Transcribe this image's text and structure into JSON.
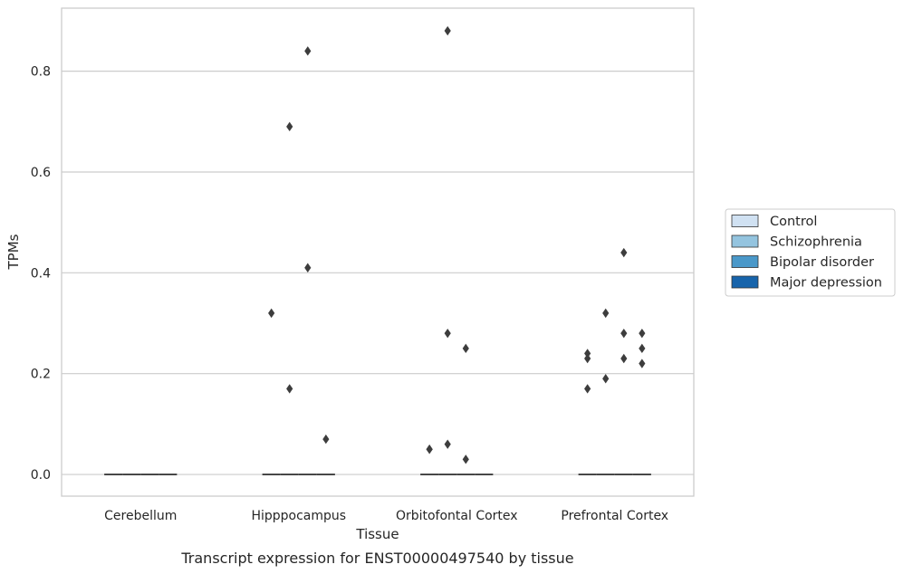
{
  "chart_data": {
    "type": "boxplot",
    "title": "",
    "caption": "Transcript expression for ENST00000497540 by tissue",
    "xlabel": "Tissue",
    "ylabel": "TPMs",
    "ylim": [
      -0.043,
      0.925
    ],
    "yticks": [
      0.0,
      0.2,
      0.4,
      0.6,
      0.8
    ],
    "ytick_labels": [
      "0.0",
      "0.2",
      "0.4",
      "0.6",
      "0.8"
    ],
    "grid": "horizontal",
    "categories": [
      "Cerebellum",
      "Hipppocampus",
      "Orbitofontal Cortex",
      "Prefrontal Cortex"
    ],
    "legend": {
      "position": "right",
      "entries": [
        {
          "label": "Control",
          "color": "#d0e1f2"
        },
        {
          "label": "Schizophrenia",
          "color": "#94c4df"
        },
        {
          "label": "Bipolar disorder",
          "color": "#4a98c9"
        },
        {
          "label": "Major depression",
          "color": "#1764ab"
        }
      ]
    },
    "series": [
      {
        "name": "Control",
        "median": [
          0.0,
          0.0,
          0.0,
          0.0
        ],
        "outliers": [
          [],
          [
            0.32
          ],
          [
            0.05,
            0.05
          ],
          [
            0.24,
            0.23,
            0.17
          ]
        ]
      },
      {
        "name": "Schizophrenia",
        "median": [
          0.0,
          0.0,
          0.0,
          0.0
        ],
        "outliers": [
          [],
          [
            0.69,
            0.17
          ],
          [
            0.88,
            0.28,
            0.06
          ],
          [
            0.32,
            0.19
          ]
        ]
      },
      {
        "name": "Bipolar disorder",
        "median": [
          0.0,
          0.0,
          0.0,
          0.0
        ],
        "outliers": [
          [],
          [
            0.84,
            0.41
          ],
          [
            0.25,
            0.03
          ],
          [
            0.44,
            0.28,
            0.23
          ]
        ]
      },
      {
        "name": "Major depression",
        "median": [
          0.0,
          0.0,
          0.0,
          0.0
        ],
        "outliers": [
          [],
          [
            0.07
          ],
          [],
          [
            0.28,
            0.25,
            0.22
          ]
        ]
      }
    ]
  }
}
